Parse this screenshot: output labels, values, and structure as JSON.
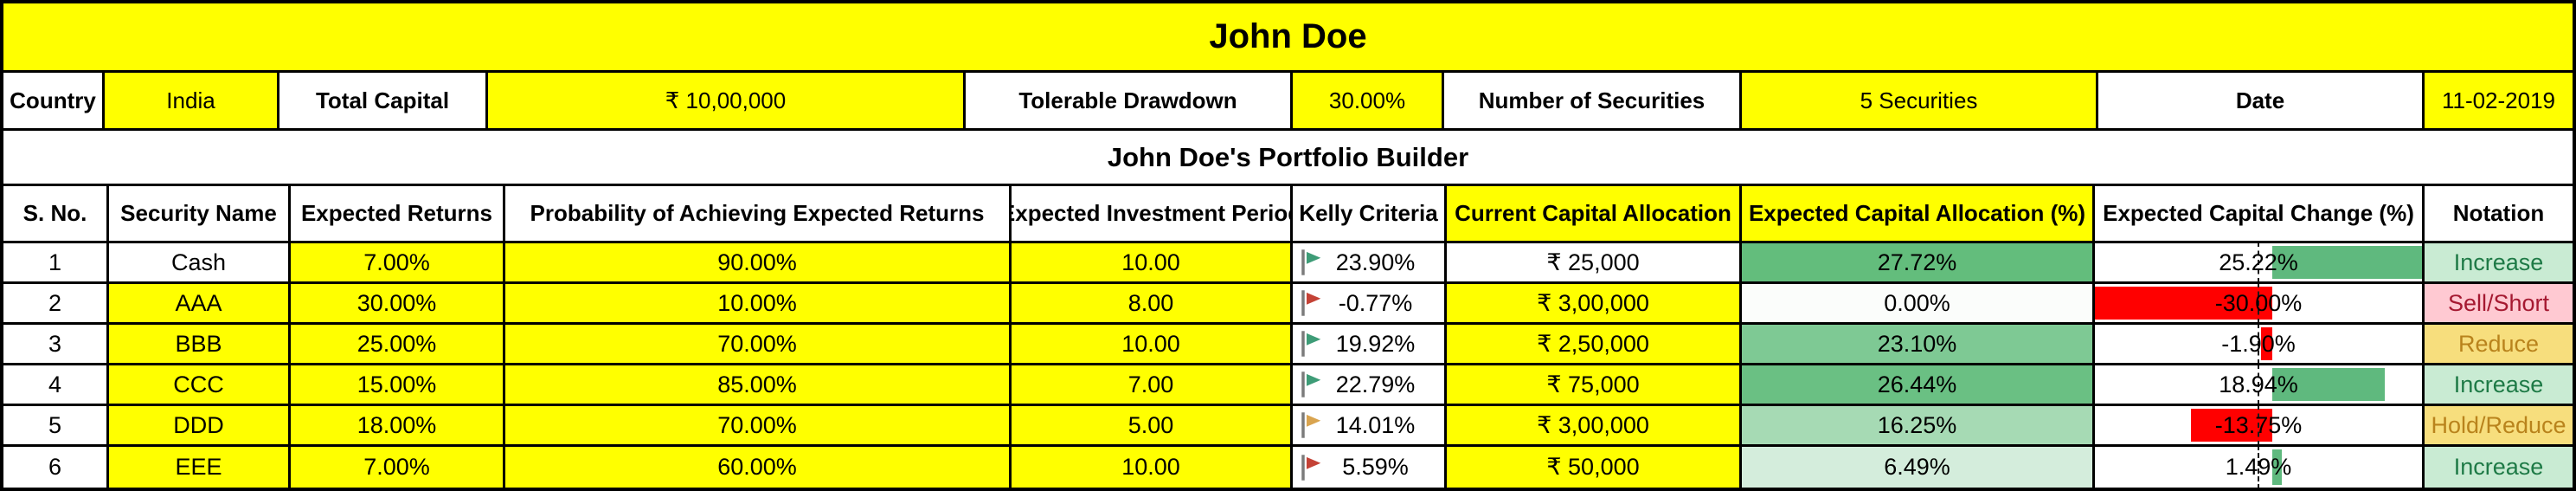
{
  "title": "John Doe",
  "info_bar": {
    "country_label": "Country",
    "country_value": "India",
    "total_capital_label": "Total Capital",
    "total_capital_value": "₹ 10,00,000",
    "drawdown_label": "Tolerable Drawdown",
    "drawdown_value": "30.00%",
    "num_securities_label": "Number of Securities",
    "num_securities_value": "5 Securities",
    "date_label": "Date",
    "date_value": "11-02-2019"
  },
  "subtitle": "John Doe's Portfolio Builder",
  "colors": {
    "input_yellow": "#FFFF00",
    "bar_positive": "#5FB97E",
    "bar_negative": "#FF0000",
    "flag_pole": "#7b7b7b"
  },
  "table": {
    "headers": {
      "sno": "S. No.",
      "security": "Security Name",
      "returns": "Expected Returns",
      "probability": "Probability of Achieving Expected Returns",
      "period": "Expected Investment Period",
      "kelly": "Kelly Criteria",
      "current": "Current Capital Allocation",
      "alloc": "Expected Capital Allocation (%)",
      "change": "Expected Capital Change (%)",
      "notation": "Notation"
    },
    "header_bg": {
      "current": "#FFFF00",
      "alloc": "#FFFF00"
    },
    "change_bar": {
      "axis_pct": 54.33,
      "neg_limit": 30.0,
      "pos_limit": 25.22,
      "pos_color": "#5FB97E",
      "neg_color": "#FF0000"
    },
    "rows": [
      {
        "sno": "1",
        "security": "Cash",
        "security_bg": "#FFFFFF",
        "returns": "7.00%",
        "probability": "90.00%",
        "period": "10.00",
        "kelly": "23.90%",
        "flag_color": "#3E9C77",
        "current": "₹ 25,000",
        "current_bg": "#FFFFFF",
        "alloc": "27.72%",
        "alloc_bg": "#63BD7C",
        "change": "25.22%",
        "change_value": 25.22,
        "notation": "Increase",
        "notation_bg": "#C9EBD3",
        "notation_color": "#1E7A46"
      },
      {
        "sno": "2",
        "security": "AAA",
        "security_bg": "#FFFF00",
        "returns": "30.00%",
        "probability": "10.00%",
        "period": "8.00",
        "kelly": "-0.77%",
        "flag_color": "#C44236",
        "current": "₹ 3,00,000",
        "current_bg": "#FFFF00",
        "alloc": "0.00%",
        "alloc_bg": "#FBFDFB",
        "change": "-30.00%",
        "change_value": -30.0,
        "notation": "Sell/Short",
        "notation_bg": "#FFC9D2",
        "notation_color": "#A51931"
      },
      {
        "sno": "3",
        "security": "BBB",
        "security_bg": "#FFFF00",
        "returns": "25.00%",
        "probability": "70.00%",
        "period": "10.00",
        "kelly": "19.92%",
        "flag_color": "#3E9C77",
        "current": "₹ 2,50,000",
        "current_bg": "#FFFF00",
        "alloc": "23.10%",
        "alloc_bg": "#7EC994",
        "change": "-1.90%",
        "change_value": -1.9,
        "notation": "Reduce",
        "notation_bg": "#F7DE7D",
        "notation_color": "#B9831C"
      },
      {
        "sno": "4",
        "security": "CCC",
        "security_bg": "#FFFF00",
        "returns": "15.00%",
        "probability": "85.00%",
        "period": "7.00",
        "kelly": "22.79%",
        "flag_color": "#3E9C77",
        "current": "₹ 75,000",
        "current_bg": "#FFFF00",
        "alloc": "26.44%",
        "alloc_bg": "#6AC083",
        "change": "18.94%",
        "change_value": 18.94,
        "notation": "Increase",
        "notation_bg": "#C9EBD3",
        "notation_color": "#1E7A46"
      },
      {
        "sno": "5",
        "security": "DDD",
        "security_bg": "#FFFF00",
        "returns": "18.00%",
        "probability": "70.00%",
        "period": "5.00",
        "kelly": "14.01%",
        "flag_color": "#D9A44F",
        "current": "₹ 3,00,000",
        "current_bg": "#FFFF00",
        "alloc": "16.25%",
        "alloc_bg": "#A6DAB4",
        "change": "-13.75%",
        "change_value": -13.75,
        "notation": "Hold/Reduce",
        "notation_bg": "#F7DE7D",
        "notation_color": "#B9831C"
      },
      {
        "sno": "6",
        "security": "EEE",
        "security_bg": "#FFFF00",
        "returns": "7.00%",
        "probability": "60.00%",
        "period": "10.00",
        "kelly": "5.59%",
        "flag_color": "#C44236",
        "current": "₹ 50,000",
        "current_bg": "#FFFF00",
        "alloc": "6.49%",
        "alloc_bg": "#D4EDDC",
        "change": "1.49%",
        "change_value": 1.49,
        "notation": "Increase",
        "notation_bg": "#C9EBD3",
        "notation_color": "#1E7A46"
      }
    ]
  }
}
